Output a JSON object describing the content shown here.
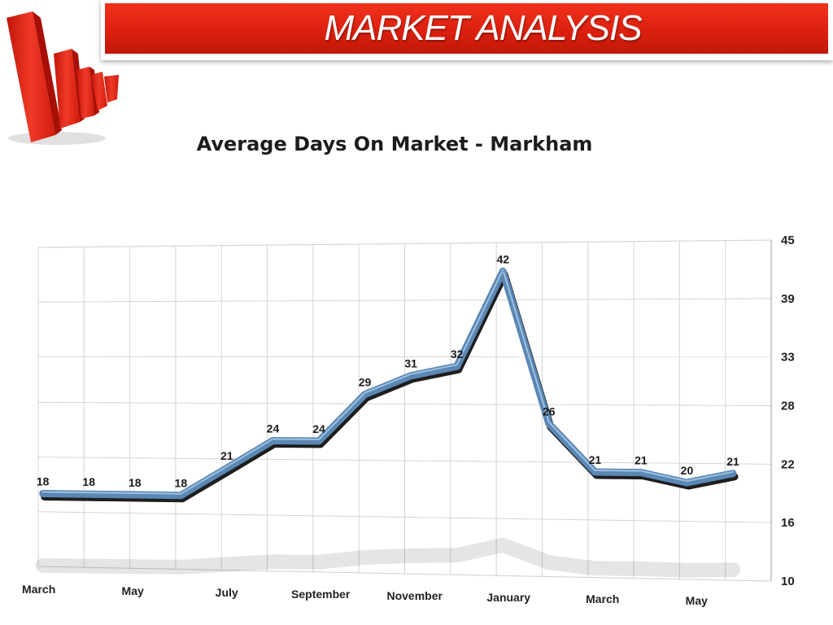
{
  "header": {
    "title": "MARKET ANALYSIS"
  },
  "colors": {
    "banner": "#dd200f",
    "line": "#5b87b4",
    "line_shadow": "#1e1e1e",
    "logo_red": "#e8281a"
  },
  "chart_data": {
    "type": "line",
    "title": "Average Days On Market - Markham",
    "xlabel": "",
    "ylabel": "",
    "y_axis_side": "right",
    "yticks": [
      10,
      16,
      22,
      28,
      33,
      39,
      45
    ],
    "ylim": [
      10,
      45
    ],
    "x_tick_labels": [
      "March",
      "May",
      "July",
      "September",
      "November",
      "January",
      "March",
      "May"
    ],
    "x_tick_positions": [
      0,
      2,
      4,
      6,
      8,
      10,
      12,
      14
    ],
    "grid": true,
    "legend": "none",
    "series": [
      {
        "values": [
          18,
          18,
          18,
          18,
          21,
          24,
          24,
          29,
          31,
          32,
          42,
          26,
          21,
          21,
          20,
          21
        ]
      }
    ]
  }
}
